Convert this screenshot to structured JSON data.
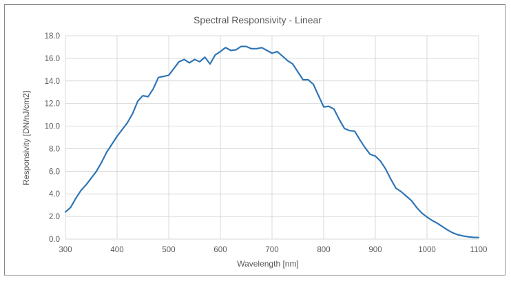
{
  "chart_data": {
    "type": "line",
    "title": "Spectral Responsivity -  Linear",
    "xlabel": "Wavelength [nm]",
    "ylabel": "Responsivity [DN/nJ/cm2]",
    "xlim": [
      300,
      1100
    ],
    "ylim": [
      0,
      18
    ],
    "x_ticks": [
      "300",
      "400",
      "500",
      "600",
      "700",
      "800",
      "900",
      "1000",
      "1100"
    ],
    "y_ticks": [
      "0.0",
      "2.0",
      "4.0",
      "6.0",
      "8.0",
      "10.0",
      "12.0",
      "14.0",
      "16.0",
      "18.0"
    ],
    "grid": true,
    "color": "#2e75b6",
    "series": [
      {
        "x": [
          300,
          310,
          320,
          330,
          340,
          350,
          360,
          370,
          380,
          390,
          400,
          410,
          420,
          430,
          440,
          450,
          460,
          470,
          480,
          490,
          500,
          510,
          520,
          530,
          540,
          550,
          560,
          570,
          580,
          590,
          600,
          610,
          620,
          630,
          640,
          650,
          660,
          670,
          680,
          690,
          700,
          710,
          720,
          730,
          740,
          750,
          760,
          770,
          780,
          790,
          800,
          810,
          820,
          830,
          840,
          850,
          860,
          870,
          880,
          890,
          900,
          910,
          920,
          930,
          940,
          950,
          960,
          970,
          980,
          990,
          1000,
          1010,
          1020,
          1030,
          1040,
          1050,
          1060,
          1070,
          1080,
          1090,
          1100
        ],
        "values": [
          2.4,
          2.8,
          3.6,
          4.3,
          4.8,
          5.4,
          6.0,
          6.8,
          7.7,
          8.4,
          9.1,
          9.7,
          10.3,
          11.1,
          12.2,
          12.7,
          12.6,
          13.3,
          14.3,
          14.4,
          14.5,
          15.1,
          15.7,
          15.9,
          15.6,
          15.9,
          15.7,
          16.1,
          15.5,
          16.3,
          16.6,
          16.95,
          16.7,
          16.75,
          17.05,
          17.05,
          16.85,
          16.85,
          16.95,
          16.7,
          16.45,
          16.6,
          16.2,
          15.8,
          15.5,
          14.8,
          14.1,
          14.1,
          13.7,
          12.7,
          11.7,
          11.75,
          11.5,
          10.6,
          9.8,
          9.6,
          9.55,
          8.8,
          8.1,
          7.5,
          7.35,
          6.9,
          6.2,
          5.3,
          4.5,
          4.2,
          3.8,
          3.4,
          2.8,
          2.3,
          1.95,
          1.65,
          1.4,
          1.1,
          0.8,
          0.55,
          0.38,
          0.28,
          0.2,
          0.15,
          0.14
        ]
      }
    ]
  }
}
